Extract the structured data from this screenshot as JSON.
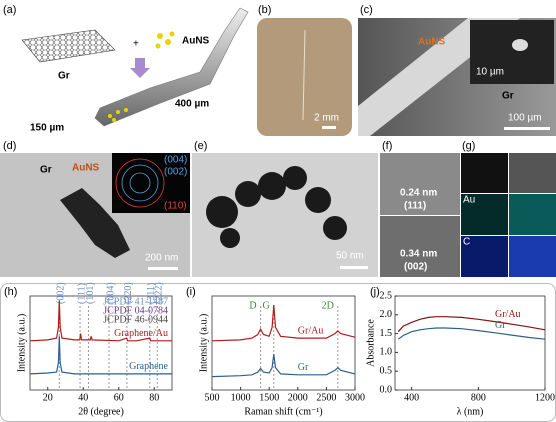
{
  "panels": {
    "a": {
      "label": "(a)",
      "texts": [
        "Gr",
        "AuNS",
        "150 µm",
        "400 µm"
      ]
    },
    "b": {
      "label": "(b)",
      "texts": [
        "2 mm"
      ]
    },
    "c": {
      "label": "(c)",
      "texts": [
        "AuNS",
        "10 µm",
        "Gr",
        "100 µm"
      ]
    },
    "d": {
      "label": "(d)",
      "texts": [
        "Gr",
        "AuNS",
        "(004)",
        "(002)",
        "(110)",
        "200 nm"
      ]
    },
    "e": {
      "label": "(e)",
      "texts": [
        "50 nm"
      ]
    },
    "f": {
      "label": "(f)",
      "texts": [
        "0.24 nm",
        "(111)",
        "0.34 nm",
        "(002)"
      ]
    },
    "g": {
      "label": "(g)",
      "texts": [
        "Au",
        "C"
      ]
    }
  },
  "charts": [
    {
      "type": "line",
      "panel": "(h)",
      "xlabel": "2θ (degree)",
      "ylabel": "Intensity (a.u.)",
      "xlim": [
        10,
        90
      ],
      "xticks": [
        20,
        40,
        60,
        80
      ],
      "ylim": [
        0,
        10.5
      ],
      "x": [
        10,
        20,
        25,
        26,
        26.5,
        27,
        28,
        35,
        38,
        38.5,
        39,
        44,
        44.5,
        45,
        60,
        64.5,
        65,
        70,
        77.5,
        78,
        90
      ],
      "series": [
        {
          "name": "Graphene/Au",
          "color": "#b01c1c",
          "values": [
            5.5,
            5.6,
            5.8,
            7,
            10,
            7,
            5.8,
            5.6,
            5.6,
            6.3,
            5.6,
            5.6,
            6,
            5.6,
            5.5,
            5.8,
            5.5,
            5.5,
            5.8,
            5.5,
            5.5
          ]
        },
        {
          "name": "Graphene",
          "color": "#2e5f8a",
          "values": [
            1.8,
            1.9,
            2,
            3,
            6,
            3,
            2,
            1.8,
            1.8,
            1.8,
            1.8,
            1.8,
            1.8,
            1.8,
            1.8,
            1.8,
            1.8,
            1.8,
            1.8,
            1.8,
            1.8
          ]
        }
      ],
      "references": [
        {
          "text": "JCPDF 41-1487",
          "color": "#6a8ec0"
        },
        {
          "text": "JCPDF 04-0784",
          "color": "#6a3a8a"
        },
        {
          "text": "JCPDF 46-0944",
          "color": "#444444"
        }
      ],
      "annotations": [
        {
          "text": "(002)",
          "x": 26.5
        },
        {
          "text": "(111)",
          "x": 38.2
        },
        {
          "text": "(101)",
          "x": 43
        },
        {
          "text": "(004)",
          "x": 54.5
        },
        {
          "text": "(220)",
          "x": 64.6
        },
        {
          "text": "(311)",
          "x": 77.5
        },
        {
          "text": "(222)",
          "x": 81.7
        }
      ]
    },
    {
      "type": "line",
      "panel": "(i)",
      "xlabel": "Raman shift (cm⁻¹)",
      "ylabel": "Intensity (a.u.)",
      "xlim": [
        500,
        3000
      ],
      "xticks": [
        500,
        1000,
        1500,
        2000,
        2500,
        3000
      ],
      "ylim": [
        0,
        10.5
      ],
      "x": [
        500,
        1000,
        1200,
        1300,
        1350,
        1400,
        1500,
        1550,
        1580,
        1610,
        1700,
        2000,
        2500,
        2650,
        2700,
        2750,
        3000
      ],
      "series": [
        {
          "name": "Gr/Au",
          "color": "#b01c1c",
          "values": [
            5.5,
            5.6,
            5.8,
            6.2,
            6.8,
            6.2,
            6.0,
            7,
            9.5,
            7,
            6,
            5.8,
            5.8,
            6.3,
            6.6,
            6.3,
            5.9
          ]
        },
        {
          "name": "Gr",
          "color": "#2e5f8a",
          "values": [
            1.5,
            1.6,
            1.7,
            2,
            2.4,
            2,
            1.9,
            2.5,
            4,
            2.5,
            1.8,
            1.7,
            1.7,
            2.2,
            2.5,
            2.2,
            1.8
          ]
        }
      ],
      "annotations": [
        {
          "text": "D",
          "x": 1350
        },
        {
          "text": "G",
          "x": 1580
        },
        {
          "text": "2D",
          "x": 2700
        }
      ]
    },
    {
      "type": "line",
      "panel": "(j)",
      "xlabel": "λ (nm)",
      "ylabel": "Absorbance",
      "xlim": [
        300,
        1200
      ],
      "xticks": [
        400,
        800,
        1200
      ],
      "ylim": [
        0,
        2.5
      ],
      "yticks": [
        {
          "value": 0,
          "label": "0.0"
        },
        0.5,
        {
          "value": 1,
          "label": "1.0"
        },
        1.5,
        {
          "value": 2,
          "label": "2.0"
        },
        2.5
      ],
      "x": [
        320,
        350,
        400,
        450,
        500,
        550,
        600,
        700,
        800,
        900,
        1000,
        1100,
        1200
      ],
      "series": [
        {
          "name": "Gr/Au",
          "color": "#8a1010",
          "values": [
            1.55,
            1.7,
            1.8,
            1.88,
            1.93,
            1.95,
            1.95,
            1.93,
            1.88,
            1.82,
            1.75,
            1.68,
            1.6
          ]
        },
        {
          "name": "Gr",
          "color": "#2e5f8a",
          "values": [
            1.35,
            1.45,
            1.55,
            1.6,
            1.63,
            1.65,
            1.65,
            1.63,
            1.58,
            1.52,
            1.46,
            1.4,
            1.35
          ]
        }
      ]
    }
  ]
}
